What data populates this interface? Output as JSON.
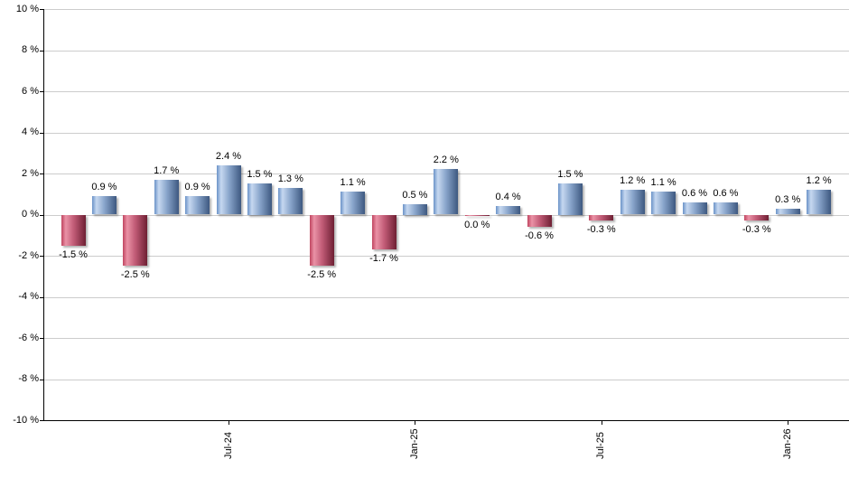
{
  "chart_data": {
    "type": "bar",
    "title": "",
    "xlabel": "",
    "ylabel": "",
    "ylim": [
      -10,
      10
    ],
    "ytick_step": 2,
    "grid": true,
    "y_tick_labels": [
      "10 %",
      "8 %",
      "6 %",
      "4 %",
      "2 %",
      "0 %",
      "-2 %",
      "-4 %",
      "-6 %",
      "-8 %",
      "-10 %"
    ],
    "x_ticks": [
      {
        "index": 5,
        "label": "Jul-24"
      },
      {
        "index": 11,
        "label": "Jan-25"
      },
      {
        "index": 17,
        "label": "Jul-25"
      },
      {
        "index": 23,
        "label": "Jan-26"
      }
    ],
    "bars": [
      {
        "value": -1.5,
        "label": "-1.5 %",
        "color": "negative"
      },
      {
        "value": 0.9,
        "label": "0.9 %",
        "color": "positive"
      },
      {
        "value": -2.5,
        "label": "-2.5 %",
        "color": "negative"
      },
      {
        "value": 1.7,
        "label": "1.7 %",
        "color": "positive"
      },
      {
        "value": 0.9,
        "label": "0.9 %",
        "color": "positive"
      },
      {
        "value": 2.4,
        "label": "2.4 %",
        "color": "positive"
      },
      {
        "value": 1.5,
        "label": "1.5 %",
        "color": "positive"
      },
      {
        "value": 1.3,
        "label": "1.3 %",
        "color": "positive"
      },
      {
        "value": -2.5,
        "label": "-2.5 %",
        "color": "negative"
      },
      {
        "value": 1.1,
        "label": "1.1 %",
        "color": "positive"
      },
      {
        "value": -1.7,
        "label": "-1.7 %",
        "color": "negative"
      },
      {
        "value": 0.5,
        "label": "0.5 %",
        "color": "positive"
      },
      {
        "value": 2.2,
        "label": "2.2 %",
        "color": "positive"
      },
      {
        "value": -0.04,
        "label": "0.0 %",
        "color": "negative"
      },
      {
        "value": 0.4,
        "label": "0.4 %",
        "color": "positive"
      },
      {
        "value": -0.6,
        "label": "-0.6 %",
        "color": "negative"
      },
      {
        "value": 1.5,
        "label": "1.5 %",
        "color": "positive"
      },
      {
        "value": -0.3,
        "label": "-0.3 %",
        "color": "negative"
      },
      {
        "value": 1.2,
        "label": "1.2 %",
        "color": "positive"
      },
      {
        "value": 1.1,
        "label": "1.1 %",
        "color": "positive"
      },
      {
        "value": 0.6,
        "label": "0.6 %",
        "color": "positive"
      },
      {
        "value": 0.6,
        "label": "0.6 %",
        "color": "positive"
      },
      {
        "value": -0.3,
        "label": "-0.3 %",
        "color": "negative"
      },
      {
        "value": 0.3,
        "label": "0.3 %",
        "color": "positive"
      },
      {
        "value": 1.2,
        "label": "1.2 %",
        "color": "positive"
      }
    ],
    "colors": {
      "positive_stops": [
        "#6b93c8",
        "#c6d8f0",
        "#8aa6cc",
        "#3d5880"
      ],
      "negative_stops": [
        "#c04560",
        "#ea92a6",
        "#c25c77",
        "#6e1f33"
      ],
      "gridline": "#cccccc",
      "axis": "#000000",
      "label_text": "#000000"
    }
  }
}
